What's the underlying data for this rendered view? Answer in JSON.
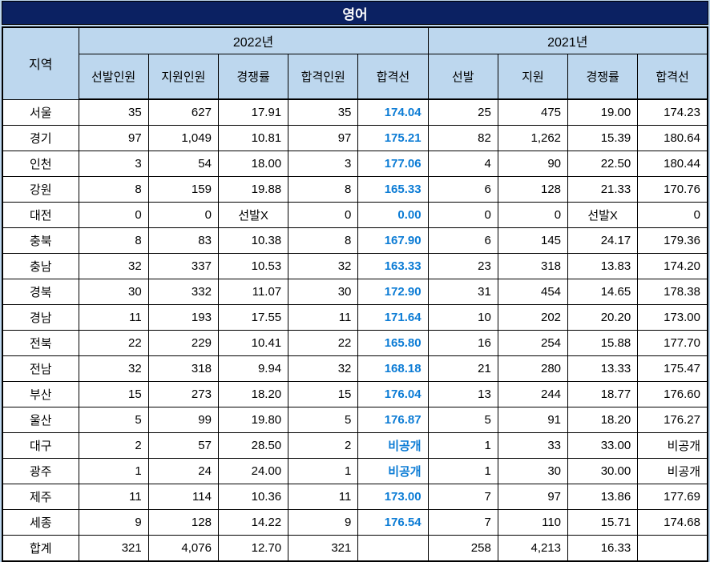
{
  "colors": {
    "title_bg": "#0B2162",
    "title_text": "#FFFFFF",
    "header_bg": "#BDD7EE",
    "page_bg": "#BDD7EE",
    "accent_blue": "#0C7CD5",
    "grid": "#000000",
    "cell_bg": "#FFFFFF"
  },
  "chart_data": {
    "type": "table",
    "title": "영어",
    "header": {
      "region_label": "지역",
      "groups": [
        {
          "label": "2022년",
          "columns": [
            "선발인원",
            "지원인원",
            "경쟁률",
            "합격인원",
            "합격선"
          ]
        },
        {
          "label": "2021년",
          "columns": [
            "선발",
            "지원",
            "경쟁률",
            "합격선"
          ]
        }
      ]
    },
    "centered_values": [
      "선발X"
    ],
    "rows": [
      {
        "region": "서울",
        "values": [
          "35",
          "627",
          "17.91",
          "35",
          "174.04",
          "25",
          "475",
          "19.00",
          "174.23"
        ]
      },
      {
        "region": "경기",
        "values": [
          "97",
          "1,049",
          "10.81",
          "97",
          "175.21",
          "82",
          "1,262",
          "15.39",
          "180.64"
        ]
      },
      {
        "region": "인천",
        "values": [
          "3",
          "54",
          "18.00",
          "3",
          "177.06",
          "4",
          "90",
          "22.50",
          "180.44"
        ]
      },
      {
        "region": "강원",
        "values": [
          "8",
          "159",
          "19.88",
          "8",
          "165.33",
          "6",
          "128",
          "21.33",
          "170.76"
        ]
      },
      {
        "region": "대전",
        "values": [
          "0",
          "0",
          "선발X",
          "0",
          "0.00",
          "0",
          "0",
          "선발X",
          "0"
        ]
      },
      {
        "region": "충북",
        "values": [
          "8",
          "83",
          "10.38",
          "8",
          "167.90",
          "6",
          "145",
          "24.17",
          "179.36"
        ]
      },
      {
        "region": "충남",
        "values": [
          "32",
          "337",
          "10.53",
          "32",
          "163.33",
          "23",
          "318",
          "13.83",
          "174.20"
        ]
      },
      {
        "region": "경북",
        "values": [
          "30",
          "332",
          "11.07",
          "30",
          "172.90",
          "31",
          "454",
          "14.65",
          "178.38"
        ]
      },
      {
        "region": "경남",
        "values": [
          "11",
          "193",
          "17.55",
          "11",
          "171.64",
          "10",
          "202",
          "20.20",
          "173.00"
        ]
      },
      {
        "region": "전북",
        "values": [
          "22",
          "229",
          "10.41",
          "22",
          "165.80",
          "16",
          "254",
          "15.88",
          "177.70"
        ]
      },
      {
        "region": "전남",
        "values": [
          "32",
          "318",
          "9.94",
          "32",
          "168.18",
          "21",
          "280",
          "13.33",
          "175.47"
        ]
      },
      {
        "region": "부산",
        "values": [
          "15",
          "273",
          "18.20",
          "15",
          "176.04",
          "13",
          "244",
          "18.77",
          "176.60"
        ]
      },
      {
        "region": "울산",
        "values": [
          "5",
          "99",
          "19.80",
          "5",
          "176.87",
          "5",
          "91",
          "18.20",
          "176.27"
        ]
      },
      {
        "region": "대구",
        "values": [
          "2",
          "57",
          "28.50",
          "2",
          "비공개",
          "1",
          "33",
          "33.00",
          "비공개"
        ]
      },
      {
        "region": "광주",
        "values": [
          "1",
          "24",
          "24.00",
          "1",
          "비공개",
          "1",
          "30",
          "30.00",
          "비공개"
        ]
      },
      {
        "region": "제주",
        "values": [
          "11",
          "114",
          "10.36",
          "11",
          "173.00",
          "7",
          "97",
          "13.86",
          "177.69"
        ]
      },
      {
        "region": "세종",
        "values": [
          "9",
          "128",
          "14.22",
          "9",
          "176.54",
          "7",
          "110",
          "15.71",
          "174.68"
        ]
      },
      {
        "region": "합계",
        "values": [
          "321",
          "4,076",
          "12.70",
          "321",
          "",
          "258",
          "4,213",
          "16.33",
          ""
        ]
      }
    ]
  }
}
